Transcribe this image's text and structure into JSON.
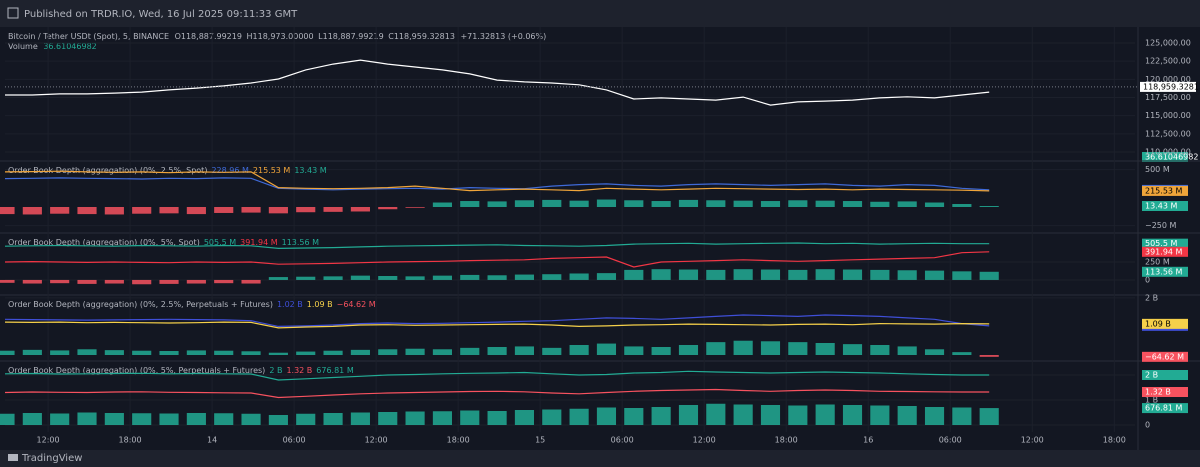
{
  "header": {
    "published": "Published on TRDR.IO, Wed, 16 Jul 2025 09:11:33 GMT",
    "symbol": "Bitcoin / Tether USDt (Spot), 5, BINANCE",
    "ohlc": [
      {
        "k": "O",
        "v": "118,887.99219"
      },
      {
        "k": "H",
        "v": "118,973.00000"
      },
      {
        "k": "L",
        "v": "118,887.99219"
      },
      {
        "k": "C",
        "v": "118,959.32813"
      }
    ],
    "change": "+71.32813 (+0.06%)",
    "volume_label": "Volume",
    "volume_value": "36.61046982",
    "footer": "TradingView"
  },
  "time_axis": {
    "xlim": [
      0,
      82.3
    ],
    "x": [
      0,
      2,
      4,
      6,
      8,
      10,
      12,
      14,
      16,
      18,
      20,
      22,
      24,
      26,
      28,
      30,
      32,
      34,
      36,
      38,
      40,
      42,
      44,
      46,
      48,
      50,
      52,
      54,
      56,
      58,
      60,
      62,
      64,
      66,
      68,
      70,
      72
    ],
    "xticks": [
      {
        "value": 3.15,
        "label": "12:00"
      },
      {
        "value": 9.15,
        "label": "18:00"
      },
      {
        "value": 15.15,
        "label": "14"
      },
      {
        "value": 21.15,
        "label": "06:00"
      },
      {
        "value": 27.15,
        "label": "12:00"
      },
      {
        "value": 33.15,
        "label": "18:00"
      },
      {
        "value": 39.15,
        "label": "15"
      },
      {
        "value": 45.15,
        "label": "06:00"
      },
      {
        "value": 51.15,
        "label": "12:00"
      },
      {
        "value": 57.15,
        "label": "18:00"
      },
      {
        "value": 63.15,
        "label": "16"
      },
      {
        "value": 69.15,
        "label": "06:00"
      },
      {
        "value": 75.15,
        "label": "12:00"
      },
      {
        "value": 81.15,
        "label": "18:00"
      }
    ]
  },
  "chart_data": [
    {
      "type": "line",
      "ylim": [
        108900,
        126790
      ],
      "yticks": [
        {
          "value": 110000,
          "label": "110,000.00"
        },
        {
          "value": 112500,
          "label": "112,500.00"
        },
        {
          "value": 115000,
          "label": "115,000.00"
        },
        {
          "value": 117500,
          "label": "117,500.00"
        },
        {
          "value": 120000,
          "label": "120,000.00"
        },
        {
          "value": 122500,
          "label": "122,500.00"
        },
        {
          "value": 125000,
          "label": "125,000.00"
        }
      ],
      "last_price": {
        "value": 118959.32813,
        "label": "118,959.32813"
      },
      "series": [
        {
          "type": "line",
          "color": "#ffffff",
          "values": [
            117850,
            117850,
            118000,
            118000,
            118100,
            118250,
            118550,
            118800,
            119100,
            119500,
            120050,
            121300,
            122100,
            122650,
            122100,
            121700,
            121300,
            120750,
            119900,
            119650,
            119500,
            119250,
            118550,
            117300,
            117450,
            117300,
            117150,
            117550,
            116450,
            116900,
            117000,
            117150,
            117450,
            117600,
            117450,
            117850,
            118250
          ]
        }
      ]
    },
    {
      "type": "mixed",
      "title": "Order Book Depth (aggregation) (0%, 2.5%, Spot)",
      "ylim": [
        -335,
        603
      ],
      "yticks": [
        {
          "value": 500,
          "label": "500 M"
        },
        {
          "value": -250,
          "label": "−250 M"
        }
      ],
      "series": [
        {
          "type": "line",
          "color": "#3f6ad8",
          "last_value": 228.96,
          "last_label": "228.96 M",
          "values": [
            380,
            385,
            390,
            385,
            380,
            375,
            385,
            380,
            390,
            385,
            250,
            240,
            230,
            240,
            245,
            250,
            240,
            260,
            250,
            245,
            280,
            300,
            310,
            290,
            280,
            300,
            310,
            300,
            290,
            300,
            310,
            290,
            280,
            300,
            290,
            250,
            228.96
          ]
        },
        {
          "type": "line",
          "color": "#f0a53a",
          "last_value": 215.53,
          "last_label": "215.53 M",
          "values": [
            470,
            475,
            480,
            470,
            465,
            470,
            460,
            470,
            465,
            470,
            260,
            250,
            245,
            250,
            260,
            280,
            250,
            220,
            230,
            240,
            230,
            220,
            250,
            240,
            230,
            240,
            250,
            245,
            240,
            235,
            240,
            230,
            240,
            235,
            230,
            225,
            215.53
          ]
        },
        {
          "type": "histogram",
          "pos_color": "#22ab94",
          "neg_color": "#f7525f",
          "last_value": 13.43,
          "last_label": "13.43 M",
          "values": [
            -95,
            -100,
            -90,
            -95,
            -100,
            -90,
            -85,
            -95,
            -80,
            -75,
            -85,
            -70,
            -65,
            -60,
            -30,
            -10,
            60,
            80,
            75,
            90,
            95,
            85,
            100,
            90,
            80,
            95,
            90,
            85,
            80,
            90,
            85,
            80,
            70,
            75,
            60,
            40,
            13.43
          ]
        }
      ]
    },
    {
      "type": "mixed",
      "title": "Order Book Depth (aggregation) (0%, 5%, Spot)",
      "ylim": [
        -140,
        640
      ],
      "yticks": [
        {
          "value": 250,
          "label": "250 M"
        },
        0
      ],
      "series": [
        {
          "type": "line",
          "color": "#22ab94",
          "last_value": 505.5,
          "last_label": "505.5 M",
          "values": [
            470,
            475,
            480,
            475,
            470,
            480,
            475,
            470,
            480,
            475,
            440,
            445,
            450,
            460,
            470,
            475,
            480,
            485,
            490,
            480,
            475,
            470,
            480,
            500,
            505,
            510,
            500,
            505,
            510,
            515,
            505,
            510,
            500,
            505,
            510,
            505,
            505.5
          ]
        },
        {
          "type": "line",
          "color": "#f23645",
          "last_value": 391.94,
          "last_label": "391.94 M",
          "values": [
            250,
            255,
            250,
            245,
            250,
            245,
            240,
            250,
            245,
            250,
            220,
            225,
            230,
            240,
            250,
            255,
            260,
            270,
            275,
            280,
            300,
            310,
            320,
            180,
            250,
            260,
            270,
            280,
            270,
            260,
            270,
            280,
            290,
            300,
            310,
            380,
            391.94
          ]
        },
        {
          "type": "histogram",
          "pos_color": "#22ab94",
          "neg_color": "#f7525f",
          "last_value": 113.56,
          "last_label": "113.56 M",
          "values": [
            -40,
            -50,
            -45,
            -55,
            -50,
            -60,
            -55,
            -50,
            -45,
            -50,
            40,
            45,
            50,
            60,
            55,
            50,
            60,
            70,
            65,
            75,
            80,
            90,
            95,
            140,
            150,
            145,
            140,
            150,
            145,
            140,
            150,
            145,
            140,
            135,
            130,
            120,
            113.56
          ]
        }
      ]
    },
    {
      "type": "mixed",
      "title": "Order Book Depth (aggregation) (0%, 2.5%, Perpetuals + Futures)",
      "ylim": [
        -175,
        2065
      ],
      "yticks": [
        {
          "value": 2000,
          "label": "2 B"
        }
      ],
      "series": [
        {
          "type": "line",
          "color": "#3f4fd8",
          "last_value": 1020,
          "last_label": "1.02 B",
          "values": [
            1250,
            1240,
            1230,
            1220,
            1230,
            1240,
            1250,
            1240,
            1230,
            1200,
            1000,
            1020,
            1050,
            1100,
            1120,
            1100,
            1110,
            1130,
            1150,
            1180,
            1200,
            1250,
            1300,
            1280,
            1250,
            1300,
            1350,
            1400,
            1380,
            1350,
            1400,
            1380,
            1350,
            1300,
            1250,
            1100,
            1020
          ]
        },
        {
          "type": "line",
          "color": "#f5d04a",
          "last_value": 1090,
          "last_label": "1.09 B",
          "values": [
            1150,
            1140,
            1150,
            1130,
            1140,
            1130,
            1120,
            1130,
            1150,
            1140,
            950,
            980,
            1000,
            1050,
            1060,
            1040,
            1050,
            1060,
            1070,
            1080,
            1050,
            1000,
            1020,
            1050,
            1060,
            1080,
            1070,
            1060,
            1050,
            1070,
            1080,
            1060,
            1100,
            1090,
            1080,
            1100,
            1090
          ]
        },
        {
          "type": "histogram",
          "pos_color": "#22ab94",
          "neg_color": "#f7525f",
          "last_value": -64.62,
          "last_label": "−64.62 M",
          "values": [
            150,
            180,
            160,
            200,
            170,
            150,
            140,
            160,
            150,
            130,
            80,
            120,
            150,
            180,
            200,
            220,
            200,
            250,
            280,
            300,
            250,
            350,
            400,
            300,
            280,
            350,
            450,
            500,
            480,
            450,
            420,
            380,
            350,
            300,
            200,
            100,
            -64.62
          ]
        }
      ]
    },
    {
      "type": "mixed",
      "title": "Order Book Depth (aggregation) (0%, 5%, Perpetuals + Futures)",
      "ylim": [
        -280,
        2520
      ],
      "yticks": [
        {
          "value": 2000,
          "label": "2 B"
        },
        {
          "value": 1000,
          "label": "1 B"
        },
        0
      ],
      "series": [
        {
          "type": "line",
          "color": "#22ab94",
          "last_value": 2000,
          "last_label": "2 B",
          "values": [
            2050,
            2060,
            2040,
            2050,
            2060,
            2070,
            2050,
            2060,
            2050,
            2040,
            1800,
            1850,
            1900,
            1950,
            2000,
            2020,
            2050,
            2070,
            2080,
            2100,
            2050,
            2000,
            2020,
            2080,
            2100,
            2150,
            2120,
            2100,
            2080,
            2100,
            2120,
            2100,
            2080,
            2050,
            2020,
            2000,
            2000
          ]
        },
        {
          "type": "line",
          "color": "#f7525f",
          "last_value": 1320,
          "last_label": "1.32 B",
          "values": [
            1300,
            1320,
            1310,
            1300,
            1320,
            1330,
            1310,
            1300,
            1290,
            1280,
            1100,
            1150,
            1200,
            1250,
            1280,
            1300,
            1320,
            1340,
            1350,
            1330,
            1280,
            1250,
            1300,
            1350,
            1380,
            1400,
            1420,
            1380,
            1350,
            1380,
            1400,
            1380,
            1350,
            1340,
            1330,
            1320,
            1320
          ]
        },
        {
          "type": "histogram",
          "pos_color": "#22ab94",
          "neg_color": "#f7525f",
          "last_value": 676.81,
          "last_label": "676.81 M",
          "values": [
            450,
            480,
            460,
            500,
            480,
            470,
            460,
            480,
            470,
            450,
            400,
            450,
            480,
            500,
            520,
            540,
            550,
            580,
            560,
            600,
            620,
            650,
            700,
            680,
            720,
            800,
            850,
            820,
            800,
            780,
            820,
            800,
            780,
            760,
            720,
            700,
            676.81
          ]
        }
      ]
    }
  ]
}
